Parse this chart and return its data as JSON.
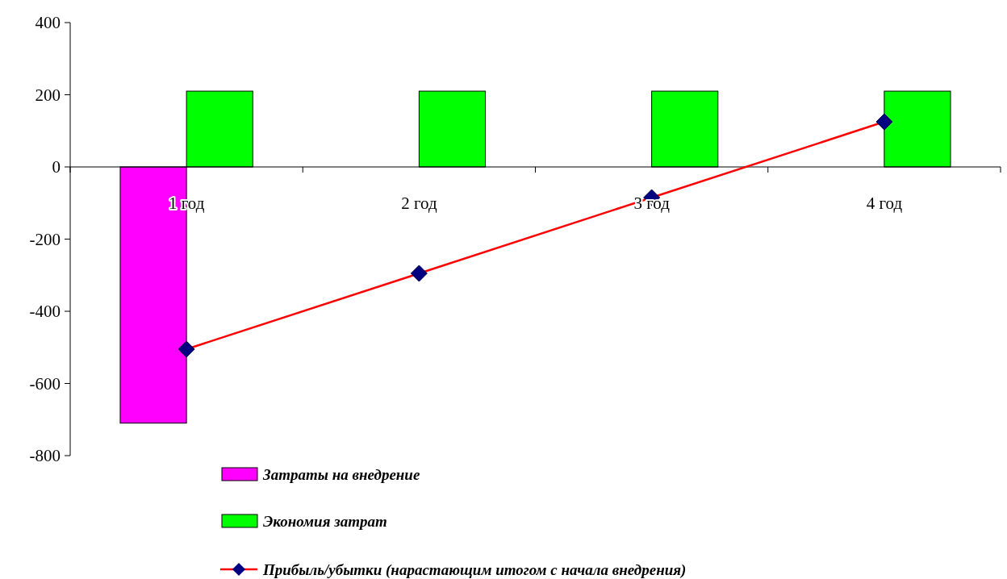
{
  "chart_data": {
    "type": "bar",
    "categories": [
      "1 год",
      "2 год",
      "3 год",
      "4 год"
    ],
    "series": [
      {
        "name": "Затраты на внедрение",
        "color": "#ff00ff",
        "values": [
          -710,
          null,
          null,
          null
        ]
      },
      {
        "name": "Экономия затрат",
        "color": "#00ff00",
        "values": [
          210,
          210,
          210,
          210
        ]
      },
      {
        "name": "Прибыль/убытки (нарастающим итогом с начала внедрения)",
        "type": "line",
        "color": "#ff0000",
        "values": [
          -505,
          -295,
          -85,
          125
        ]
      }
    ],
    "ylim": [
      -800,
      400
    ],
    "yticks": [
      -800,
      -600,
      -400,
      -200,
      0,
      200,
      400
    ],
    "grid": false,
    "legend": "bottom",
    "marker": "diamond",
    "line_style": "solid"
  }
}
